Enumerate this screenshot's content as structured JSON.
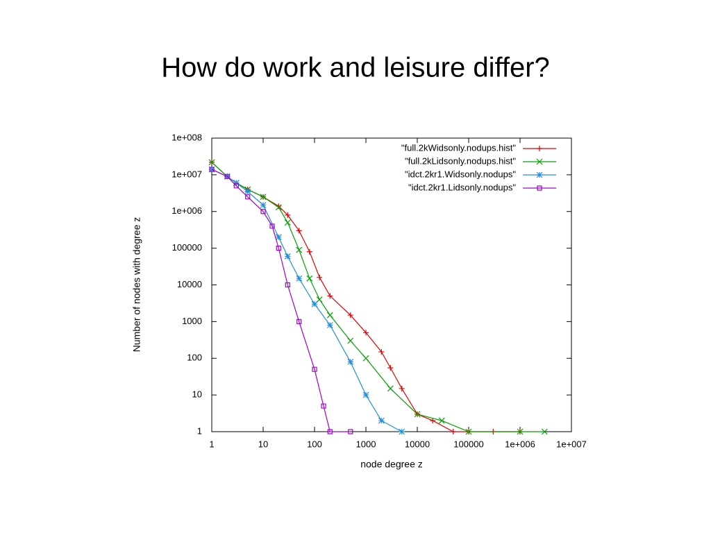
{
  "chart_data": {
    "type": "scatter",
    "title": "How do work and leisure differ?",
    "xlabel": "node degree z",
    "ylabel": "Number of nodes with degree z",
    "xscale": "log",
    "yscale": "log",
    "grid": false,
    "legend": "top-right",
    "xlim": [
      1,
      10000000
    ],
    "ylim": [
      1,
      100000000
    ],
    "xticks": [
      1,
      10,
      100,
      1000,
      10000,
      100000,
      {
        "value": 1000000,
        "label": "1e+006"
      },
      {
        "value": 10000000,
        "label": "1e+007"
      }
    ],
    "yticks": [
      1,
      10,
      100,
      1000,
      10000,
      100000,
      {
        "value": 1000000,
        "label": "1e+006"
      },
      {
        "value": 10000000,
        "label": "1e+007"
      },
      {
        "value": 100000000,
        "label": "1e+008"
      }
    ],
    "series": [
      {
        "name": "\"full.2kWidsonly.nodups.hist\"",
        "color": "#e00000",
        "marker": "plus",
        "x": [
          1,
          2,
          3,
          5,
          10,
          20,
          30,
          50,
          80,
          125,
          200,
          500,
          1000,
          2000,
          3000,
          5000,
          10000,
          20000,
          50000,
          100000,
          300000,
          1000000
        ],
        "values": [
          22000000,
          9000000,
          6000000,
          4000000,
          2500000,
          1400000,
          800000,
          300000,
          80000,
          16000,
          5000,
          1500,
          500,
          150,
          55,
          15,
          3,
          2,
          1,
          1,
          1,
          1
        ]
      },
      {
        "name": "\"full.2kLidsonly.nodups.hist\"",
        "color": "#00a000",
        "marker": "cross",
        "x": [
          1,
          2,
          3,
          5,
          10,
          20,
          30,
          50,
          80,
          125,
          200,
          500,
          1000,
          3000,
          10000,
          30000,
          100000,
          1000000,
          3000000
        ],
        "values": [
          22000000,
          9000000,
          6000000,
          4000000,
          2500000,
          1300000,
          500000,
          90000,
          15000,
          4000,
          1500,
          300,
          100,
          15,
          3,
          2,
          1,
          1,
          1
        ]
      },
      {
        "name": "\"idct.2kr1.Widsonly.nodups\"",
        "color": "#1e8fe0",
        "marker": "star",
        "x": [
          1,
          2,
          3,
          5,
          10,
          20,
          30,
          50,
          100,
          200,
          500,
          1000,
          2000,
          5000
        ],
        "values": [
          14000000,
          9000000,
          6000000,
          3500000,
          1500000,
          200000,
          60000,
          15000,
          3000,
          800,
          80,
          10,
          2,
          1
        ]
      },
      {
        "name": "\"idct.2kr1.Lidsonly.nodups\"",
        "color": "#a000d0",
        "marker": "square",
        "x": [
          1,
          2,
          3,
          5,
          10,
          15,
          20,
          30,
          50,
          100,
          150,
          200,
          500
        ],
        "values": [
          14000000,
          9000000,
          5000000,
          2500000,
          1000000,
          400000,
          100000,
          10000,
          1000,
          50,
          5,
          1,
          1
        ]
      }
    ]
  }
}
